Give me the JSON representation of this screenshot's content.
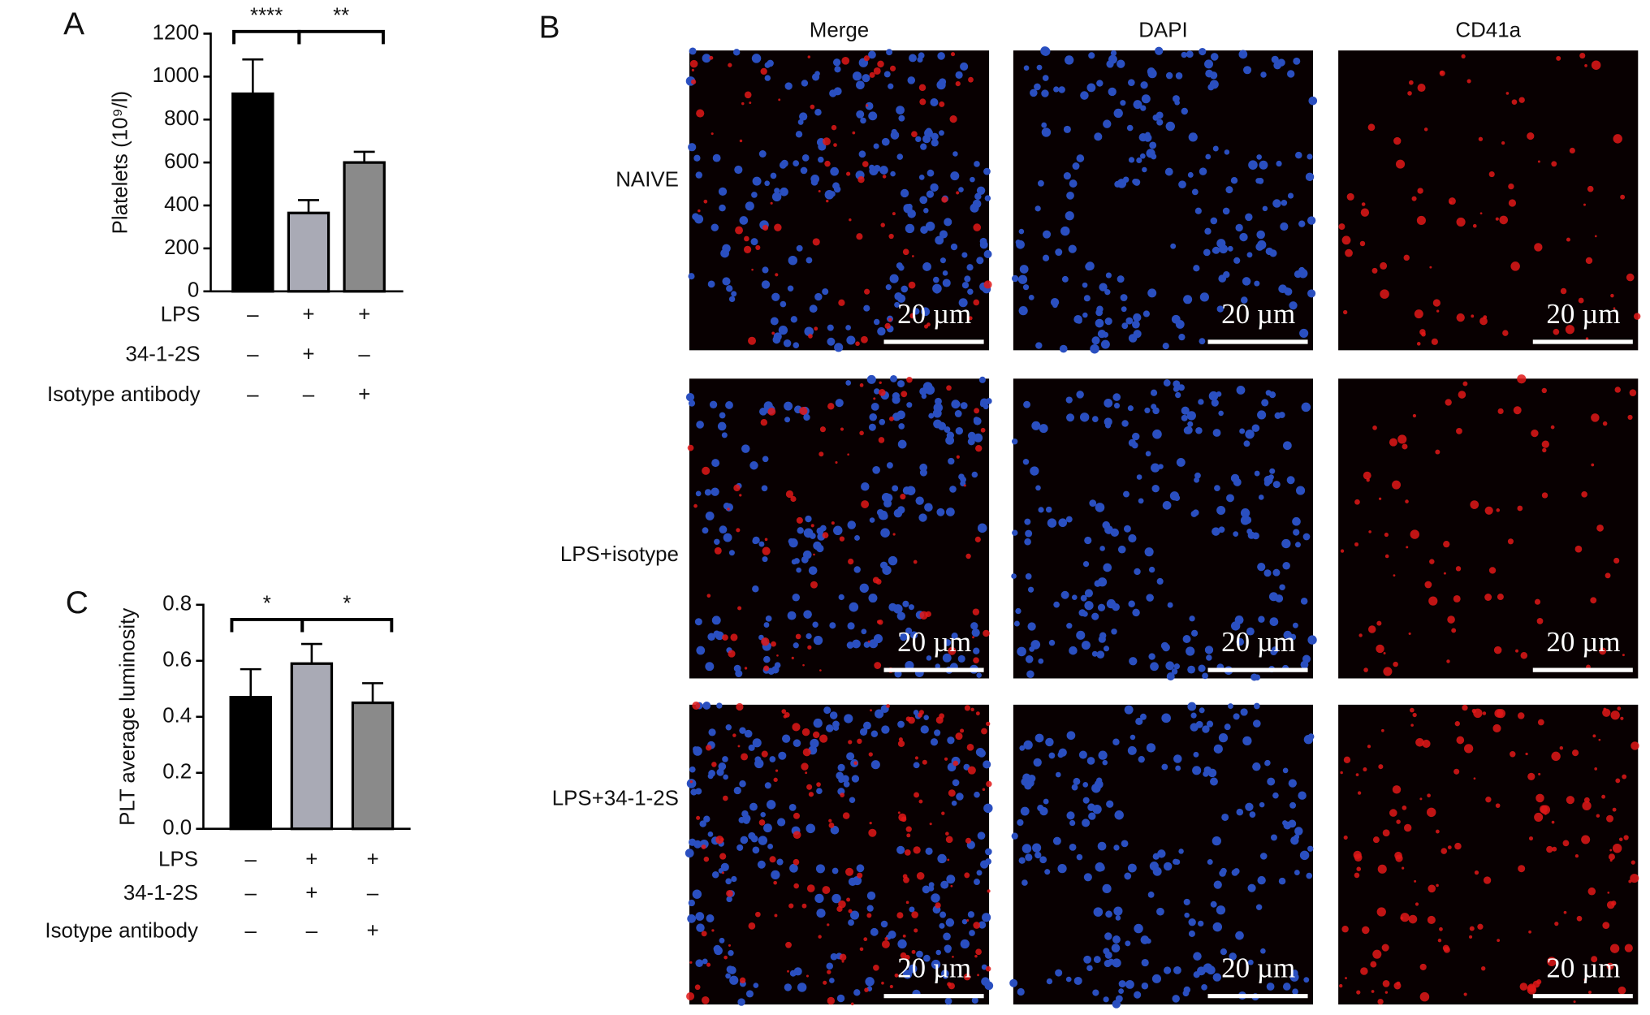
{
  "chart_data": [
    {
      "type": "bar",
      "panel_label": "A",
      "ylabel": "Platelets (10⁹/l)",
      "categories": [
        null,
        null,
        null
      ],
      "values": [
        920,
        365,
        600
      ],
      "errors": [
        160,
        60,
        50
      ],
      "colors": [
        "#000000",
        "#a9aab5",
        "#8a8a8a"
      ],
      "ylim": [
        0,
        1200
      ],
      "yticks": [
        0,
        200,
        400,
        600,
        800,
        1000,
        1200
      ],
      "conditions": [
        {
          "name": "LPS",
          "values": [
            "–",
            "+",
            "+"
          ]
        },
        {
          "name": "34-1-2S",
          "values": [
            "–",
            "+",
            "–"
          ]
        },
        {
          "name": "Isotype antibody",
          "values": [
            "–",
            "–",
            "+"
          ]
        }
      ],
      "comparisons": [
        {
          "from": 0,
          "to": 1,
          "label": "****"
        },
        {
          "from": 1,
          "to": 2,
          "label": "**"
        }
      ]
    },
    {
      "type": "bar",
      "panel_label": "C",
      "ylabel": "PLT average luminosity",
      "categories": [
        null,
        null,
        null
      ],
      "values": [
        0.47,
        0.59,
        0.45
      ],
      "errors": [
        0.1,
        0.07,
        0.07
      ],
      "colors": [
        "#000000",
        "#a9aab5",
        "#8a8a8a"
      ],
      "ylim": [
        0,
        0.8
      ],
      "yticks": [
        {
          "value": 0,
          "label": "0.0"
        },
        0.2,
        0.4,
        0.6,
        0.8
      ],
      "conditions": [
        {
          "name": "LPS",
          "values": [
            "–",
            "+",
            "+"
          ]
        },
        {
          "name": "34-1-2S",
          "values": [
            "–",
            "+",
            "–"
          ]
        },
        {
          "name": "Isotype antibody",
          "values": [
            "–",
            "–",
            "+"
          ]
        }
      ],
      "comparisons": [
        {
          "from": 0,
          "to": 1,
          "label": "*"
        },
        {
          "from": 1,
          "to": 2,
          "label": "*"
        }
      ]
    }
  ],
  "images": {
    "panel_label": "B",
    "columns": [
      "Merge",
      "DAPI",
      "CD41a"
    ],
    "rows": [
      "NAIVE",
      "LPS+isotype",
      "LPS+34-1-2S"
    ],
    "scale_bar": "20 µm"
  }
}
